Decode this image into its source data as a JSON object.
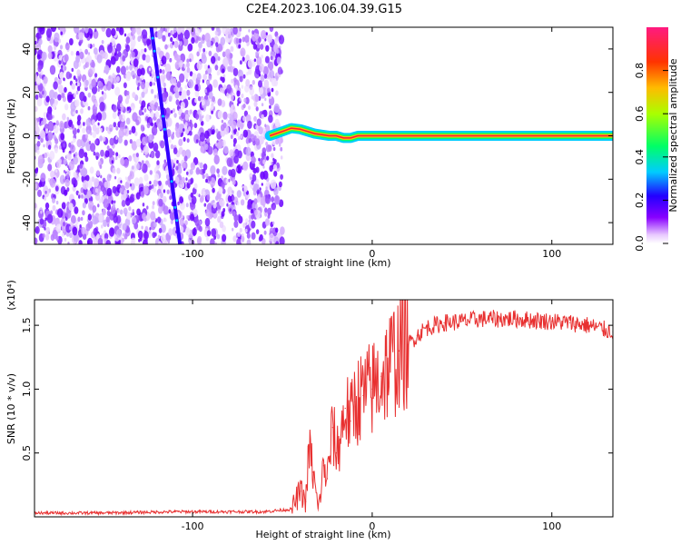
{
  "title": "C2E4.2023.106.04.39.G15",
  "chart_data": [
    {
      "type": "heatmap",
      "xlabel": "Height of straight line (km)",
      "ylabel": "Frequency (Hz)",
      "xlim": [
        -188,
        134
      ],
      "ylim": [
        -50,
        50
      ],
      "x_ticks": [
        -100,
        0,
        100
      ],
      "x_tick_labels": [
        "-100",
        "0",
        "100"
      ],
      "y_ticks": [
        -40,
        -20,
        0,
        20,
        40
      ],
      "y_tick_labels": [
        "-40",
        "-20",
        "0",
        "20",
        "40"
      ],
      "noise_region_x": [
        -188,
        -52
      ],
      "diagonal_trace": {
        "x": [
          -123,
          -107
        ],
        "y": [
          50,
          -50
        ]
      },
      "signal_trace": {
        "x": [
          -57,
          -50,
          -45,
          -40,
          -36,
          -32,
          -28,
          -24,
          -20,
          -16,
          -12,
          -8,
          0,
          40,
          80,
          134
        ],
        "y": [
          0,
          2,
          3.5,
          3,
          2,
          1,
          0.5,
          0,
          0,
          -1,
          -1,
          0,
          0,
          0,
          0,
          0
        ]
      },
      "colorbar": {
        "label": "Normalized spectral amplitude",
        "range": [
          0,
          1
        ],
        "ticks": [
          0.0,
          0.2,
          0.4,
          0.6,
          0.8
        ],
        "tick_labels": [
          "0.0",
          "0.2",
          "0.4",
          "0.6",
          "0.8"
        ]
      },
      "grid": false
    },
    {
      "type": "line",
      "xlabel": "Height of straight line (km)",
      "ylabel": "SNR (10 * v/v)",
      "y_multiplier_label": "(x10⁴)",
      "xlim": [
        -188,
        134
      ],
      "ylim": [
        0,
        1.7
      ],
      "x_ticks": [
        -100,
        0,
        100
      ],
      "x_tick_labels": [
        "-100",
        "0",
        "100"
      ],
      "y_ticks": [
        0.5,
        1.0,
        1.5
      ],
      "y_tick_labels": [
        "0.5",
        "1.0",
        "1.5"
      ],
      "series": [
        {
          "color": "#e83030",
          "x": [
            -188,
            -150,
            -110,
            -60,
            -45,
            -40,
            -37,
            -35,
            -33,
            -30,
            -27,
            -25,
            -22,
            -20,
            -18,
            -15,
            -12,
            -10,
            -5,
            0,
            5,
            10,
            15,
            20,
            25,
            30,
            35,
            40,
            50,
            60,
            70,
            80,
            90,
            100,
            110,
            120,
            134
          ],
          "y": [
            0.03,
            0.03,
            0.04,
            0.04,
            0.06,
            0.2,
            0.12,
            0.55,
            0.35,
            0.05,
            0.4,
            0.3,
            0.7,
            0.5,
            0.6,
            0.85,
            0.75,
            0.9,
            0.95,
            1.0,
            1.1,
            1.2,
            1.3,
            1.35,
            1.42,
            1.48,
            1.5,
            1.52,
            1.53,
            1.55,
            1.55,
            1.55,
            1.54,
            1.53,
            1.52,
            1.5,
            1.45
          ]
        }
      ],
      "grid": false
    }
  ]
}
